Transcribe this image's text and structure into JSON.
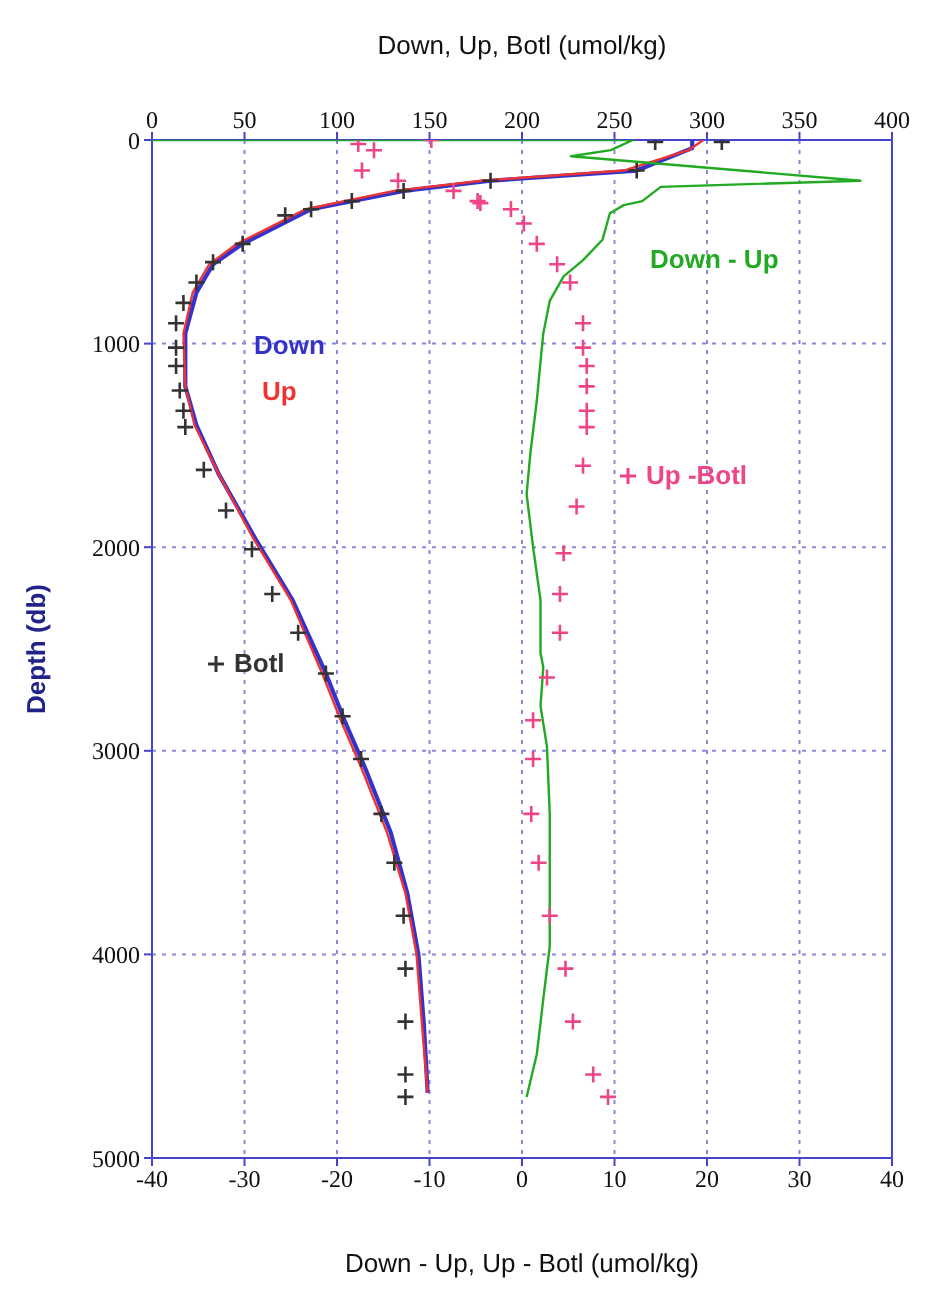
{
  "chart_data": {
    "type": "line",
    "xlabel": "Down - Up, Up - Botl (umol/kg)",
    "x2label": "Down, Up, Botl (umol/kg)",
    "ylabel": "Depth (db)",
    "xlim": [
      -40,
      40
    ],
    "xticks": [
      -40,
      -30,
      -20,
      -10,
      0,
      10,
      20,
      30,
      40
    ],
    "x2lim": [
      0,
      400
    ],
    "x2ticks": [
      0,
      50,
      100,
      150,
      200,
      250,
      300,
      350,
      400
    ],
    "ylim": [
      5000,
      0
    ],
    "yticks": [
      0,
      1000,
      2000,
      3000,
      4000,
      5000
    ],
    "grid": true,
    "legend": "left",
    "series": [
      {
        "name": "Down",
        "axis": "x2",
        "marker": "none",
        "color": "#3333cc",
        "x": [
          292,
          292,
          262,
          183,
          136,
          108,
          86,
          49,
          33,
          24,
          18,
          18,
          24,
          36,
          56,
          76,
          94,
          104,
          115,
          129,
          138,
          144,
          147,
          149
        ],
        "values": [
          0,
          40,
          150,
          200,
          250,
          300,
          340,
          510,
          610,
          750,
          950,
          1210,
          1400,
          1640,
          1960,
          2260,
          2620,
          2850,
          3080,
          3400,
          3700,
          4000,
          4350,
          4680
        ]
      },
      {
        "name": "Up",
        "axis": "x2",
        "marker": "none",
        "color": "#ee3333",
        "x": [
          298,
          290,
          255,
          178,
          131,
          104,
          83,
          46,
          31,
          22,
          17,
          18,
          23,
          36,
          55,
          75,
          92,
          102,
          113,
          127,
          137,
          143,
          146,
          149
        ],
        "values": [
          0,
          50,
          150,
          200,
          250,
          300,
          340,
          510,
          610,
          750,
          950,
          1210,
          1400,
          1640,
          1960,
          2260,
          2620,
          2850,
          3080,
          3400,
          3700,
          4000,
          4350,
          4680
        ]
      },
      {
        "name": "Botl",
        "type": "scatter",
        "axis": "x2",
        "marker": "cross",
        "color": "#333333",
        "x": [
          308,
          272,
          262,
          183,
          108,
          72,
          136,
          86,
          49,
          33,
          24,
          17,
          13,
          13,
          13,
          15,
          17,
          18,
          28,
          40,
          54,
          65,
          79,
          94,
          103,
          113,
          124,
          131,
          136,
          137,
          137,
          137,
          137
        ],
        "values": [
          10,
          10,
          150,
          200,
          300,
          370,
          250,
          340,
          510,
          600,
          700,
          800,
          900,
          1020,
          1110,
          1230,
          1330,
          1410,
          1620,
          1820,
          2010,
          2230,
          2420,
          2620,
          2830,
          3040,
          3310,
          3550,
          3810,
          4070,
          4330,
          4590,
          4700
        ]
      },
      {
        "name": "Down - Up",
        "marker": "none",
        "color": "#22aa22",
        "x": [
          -40,
          12,
          9.6,
          5.3,
          36.6,
          15,
          13,
          11,
          9.5,
          8.7,
          6.6,
          4.5,
          3,
          2.3,
          1.6,
          0.9,
          0.5,
          1.2,
          2,
          2,
          2.3,
          2,
          2.7,
          3,
          3,
          3,
          2.3,
          1.6,
          0.5
        ],
        "values": [
          0,
          0,
          50,
          80,
          200,
          230,
          300,
          320,
          360,
          490,
          590,
          670,
          790,
          950,
          1280,
          1540,
          1740,
          2000,
          2260,
          2520,
          2590,
          2780,
          2980,
          3310,
          3630,
          3960,
          4220,
          4490,
          4700
        ]
      },
      {
        "name": "Up -Botl",
        "type": "scatter",
        "marker": "cross",
        "color": "#ee4488",
        "x": [
          -17.7,
          -16,
          -17.3,
          -13.4,
          -9.8,
          -7.4,
          -4.8,
          -1.2,
          -4.5,
          0.2,
          1.6,
          3.8,
          5.2,
          6.6,
          6.6,
          7,
          7,
          7,
          7,
          6.6,
          5.9,
          4.5,
          4.1,
          4.1,
          2.7,
          1.2,
          1.2,
          1,
          1.8,
          3,
          4.7,
          5.5,
          7.7,
          9.3
        ],
        "values": [
          20,
          50,
          150,
          200,
          0,
          250,
          300,
          340,
          310,
          410,
          510,
          610,
          700,
          900,
          1020,
          1110,
          1210,
          1330,
          1410,
          1600,
          1800,
          2030,
          2230,
          2420,
          2640,
          2850,
          3040,
          3310,
          3550,
          3810,
          4070,
          4330,
          4590,
          4700
        ]
      }
    ]
  }
}
